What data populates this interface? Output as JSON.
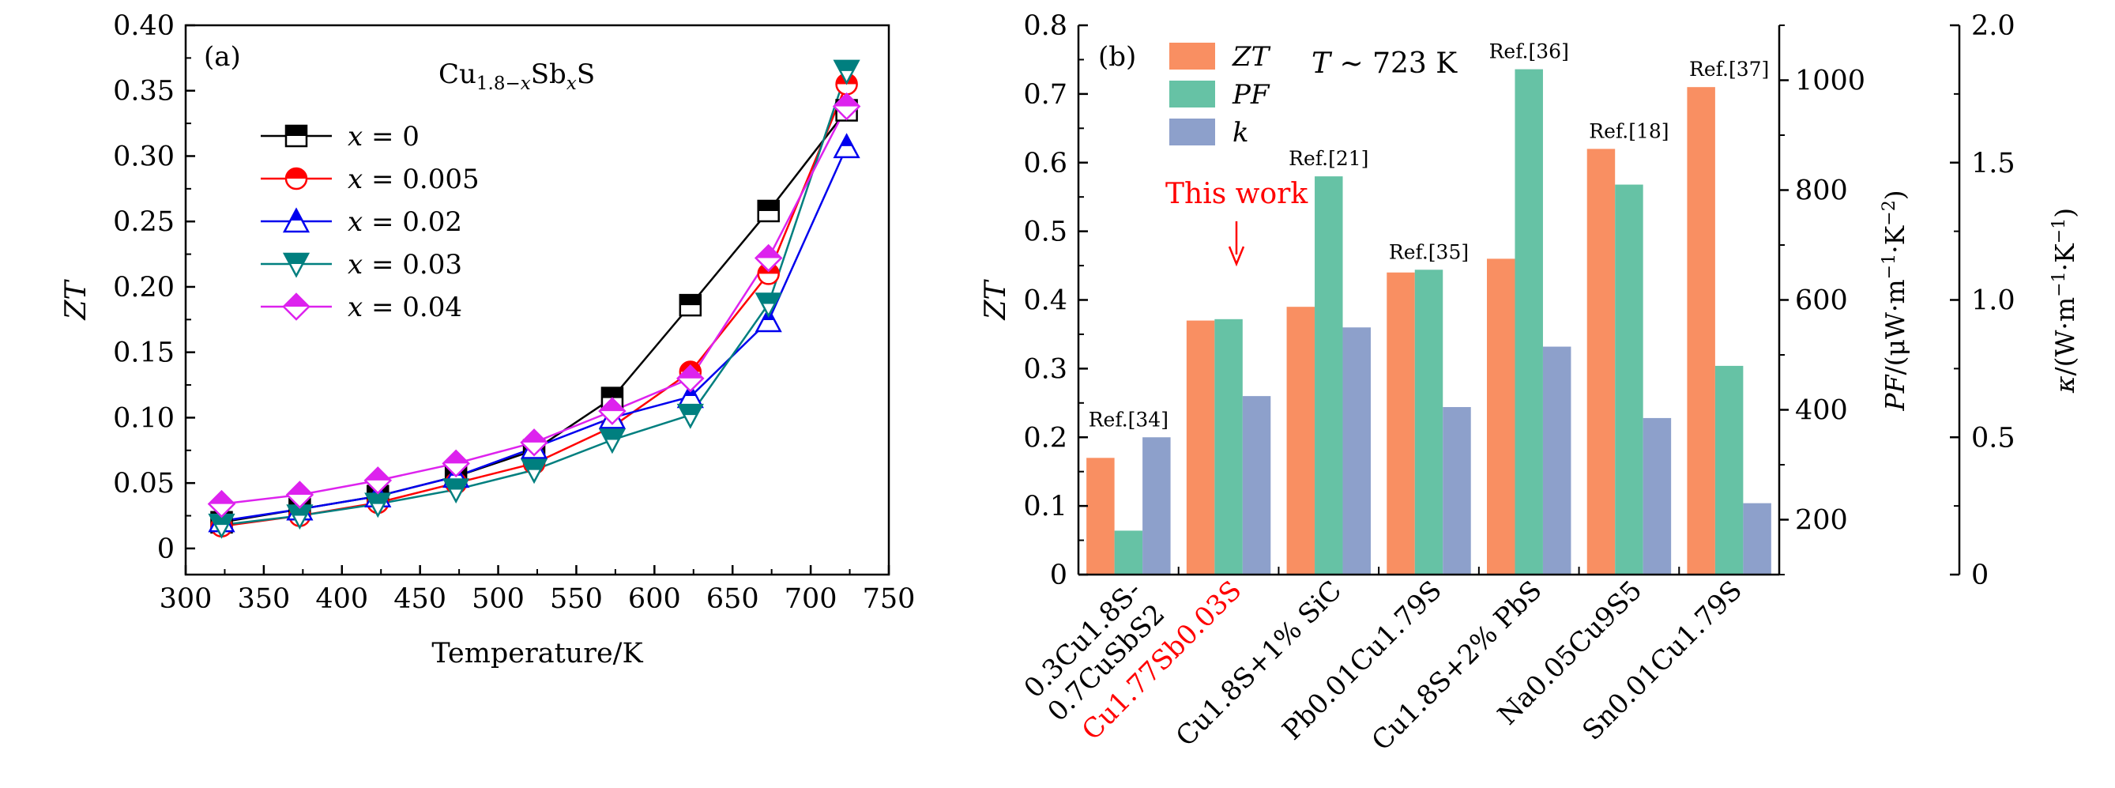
{
  "chart_data": [
    {
      "type": "line",
      "panel_label": "(a)",
      "formula": {
        "base": "Cu",
        "sub1": "1.8−",
        "x": "x",
        "mid": "Sb",
        "sub2": "x",
        "end": "S"
      },
      "xlabel": "Temperature/K",
      "ylabel": "ZT",
      "xlim": [
        300,
        750
      ],
      "ylim": [
        -0.02,
        0.4
      ],
      "xticks": [
        "300",
        "350",
        "400",
        "450",
        "500",
        "550",
        "600",
        "650",
        "700",
        "750"
      ],
      "yticks": [
        "0",
        "0.05",
        "0.10",
        "0.15",
        "0.20",
        "0.25",
        "0.30",
        "0.35",
        "0.40"
      ],
      "x": [
        323,
        373,
        423,
        473,
        523,
        573,
        623,
        673,
        723
      ],
      "legend_position": "upper-left",
      "series": [
        {
          "name": "x = 0",
          "var": "x",
          "val": "= 0",
          "color": "#000000",
          "marker": "square",
          "values": [
            0.02,
            0.03,
            0.04,
            0.055,
            0.075,
            0.115,
            0.186,
            0.258,
            0.335
          ]
        },
        {
          "name": "x = 0.005",
          "var": "x",
          "val": "= 0.005",
          "color": "#ff0000",
          "marker": "circle",
          "values": [
            0.017,
            0.025,
            0.035,
            0.05,
            0.065,
            0.093,
            0.135,
            0.21,
            0.355
          ]
        },
        {
          "name": "x = 0.02",
          "var": "x",
          "val": "= 0.02",
          "color": "#0000ee",
          "marker": "triangle-up",
          "values": [
            0.021,
            0.03,
            0.04,
            0.055,
            0.077,
            0.1,
            0.116,
            0.174,
            0.307
          ]
        },
        {
          "name": "x = 0.03",
          "var": "x",
          "val": "= 0.03",
          "color": "#007f7f",
          "marker": "triangle-down",
          "values": [
            0.018,
            0.025,
            0.034,
            0.045,
            0.06,
            0.083,
            0.102,
            0.187,
            0.365
          ]
        },
        {
          "name": "x = 0.04",
          "var": "x",
          "val": "= 0.04",
          "color": "#dd22ee",
          "marker": "diamond",
          "values": [
            0.034,
            0.041,
            0.052,
            0.065,
            0.081,
            0.105,
            0.13,
            0.222,
            0.338
          ]
        }
      ]
    },
    {
      "type": "bar",
      "panel_label": "(b)",
      "condition": "T ~ 723 K",
      "ylabel_left": "ZT",
      "ylabel_pf": "PF/(μW·m⁻¹·K⁻²)",
      "ylabel_k": "κ/(W·m⁻¹·K⁻¹)",
      "ylim_left": [
        0,
        0.8
      ],
      "ylim_pf": [
        100,
        1100
      ],
      "ylim_k": [
        0,
        2.0
      ],
      "yticks_left": [
        "0",
        "0.1",
        "0.2",
        "0.3",
        "0.4",
        "0.5",
        "0.6",
        "0.7",
        "0.8"
      ],
      "yticks_pf": [
        "200",
        "400",
        "600",
        "800",
        "1000"
      ],
      "yticks_k": [
        "0",
        "0.5",
        "1.0",
        "1.5",
        "2.0"
      ],
      "legend_position": "upper-left",
      "series": [
        {
          "name": "ZT",
          "color": "#f98f62"
        },
        {
          "name": "PF",
          "color": "#66c2a5"
        },
        {
          "name": "k",
          "color": "#8da0cb"
        }
      ],
      "categories": [
        {
          "line1": "0.3Cu1.8S-",
          "line2": "0.7CuSbS2",
          "highlight": false,
          "ref": "Ref.[34]",
          "zt": 0.17,
          "pf": 180,
          "k": 0.5
        },
        {
          "line1": "Cu1.77Sb0.03S",
          "line2": "",
          "highlight": true,
          "ref": "",
          "zt": 0.37,
          "pf": 565,
          "k": 0.65
        },
        {
          "line1": "Cu1.8S+1% SiC",
          "line2": "",
          "highlight": false,
          "ref": "Ref.[21]",
          "zt": 0.39,
          "pf": 825,
          "k": 0.9
        },
        {
          "line1": "Pb0.01Cu1.79S",
          "line2": "",
          "highlight": false,
          "ref": "Ref.[35]",
          "zt": 0.44,
          "pf": 655,
          "k": 0.61
        },
        {
          "line1": "Cu1.8S+2% PbS",
          "line2": "",
          "highlight": false,
          "ref": "Ref.[36]",
          "zt": 0.46,
          "pf": 1020,
          "k": 0.83
        },
        {
          "line1": "Na0.05Cu9S5",
          "line2": "",
          "highlight": false,
          "ref": "Ref.[18]",
          "zt": 0.62,
          "pf": 810,
          "k": 0.57
        },
        {
          "line1": "Sn0.01Cu1.79S",
          "line2": "",
          "highlight": false,
          "ref": "Ref.[37]",
          "zt": 0.71,
          "pf": 480,
          "k": 0.26
        }
      ],
      "annotation": {
        "text": "This work",
        "color": "#ff0000"
      }
    }
  ]
}
